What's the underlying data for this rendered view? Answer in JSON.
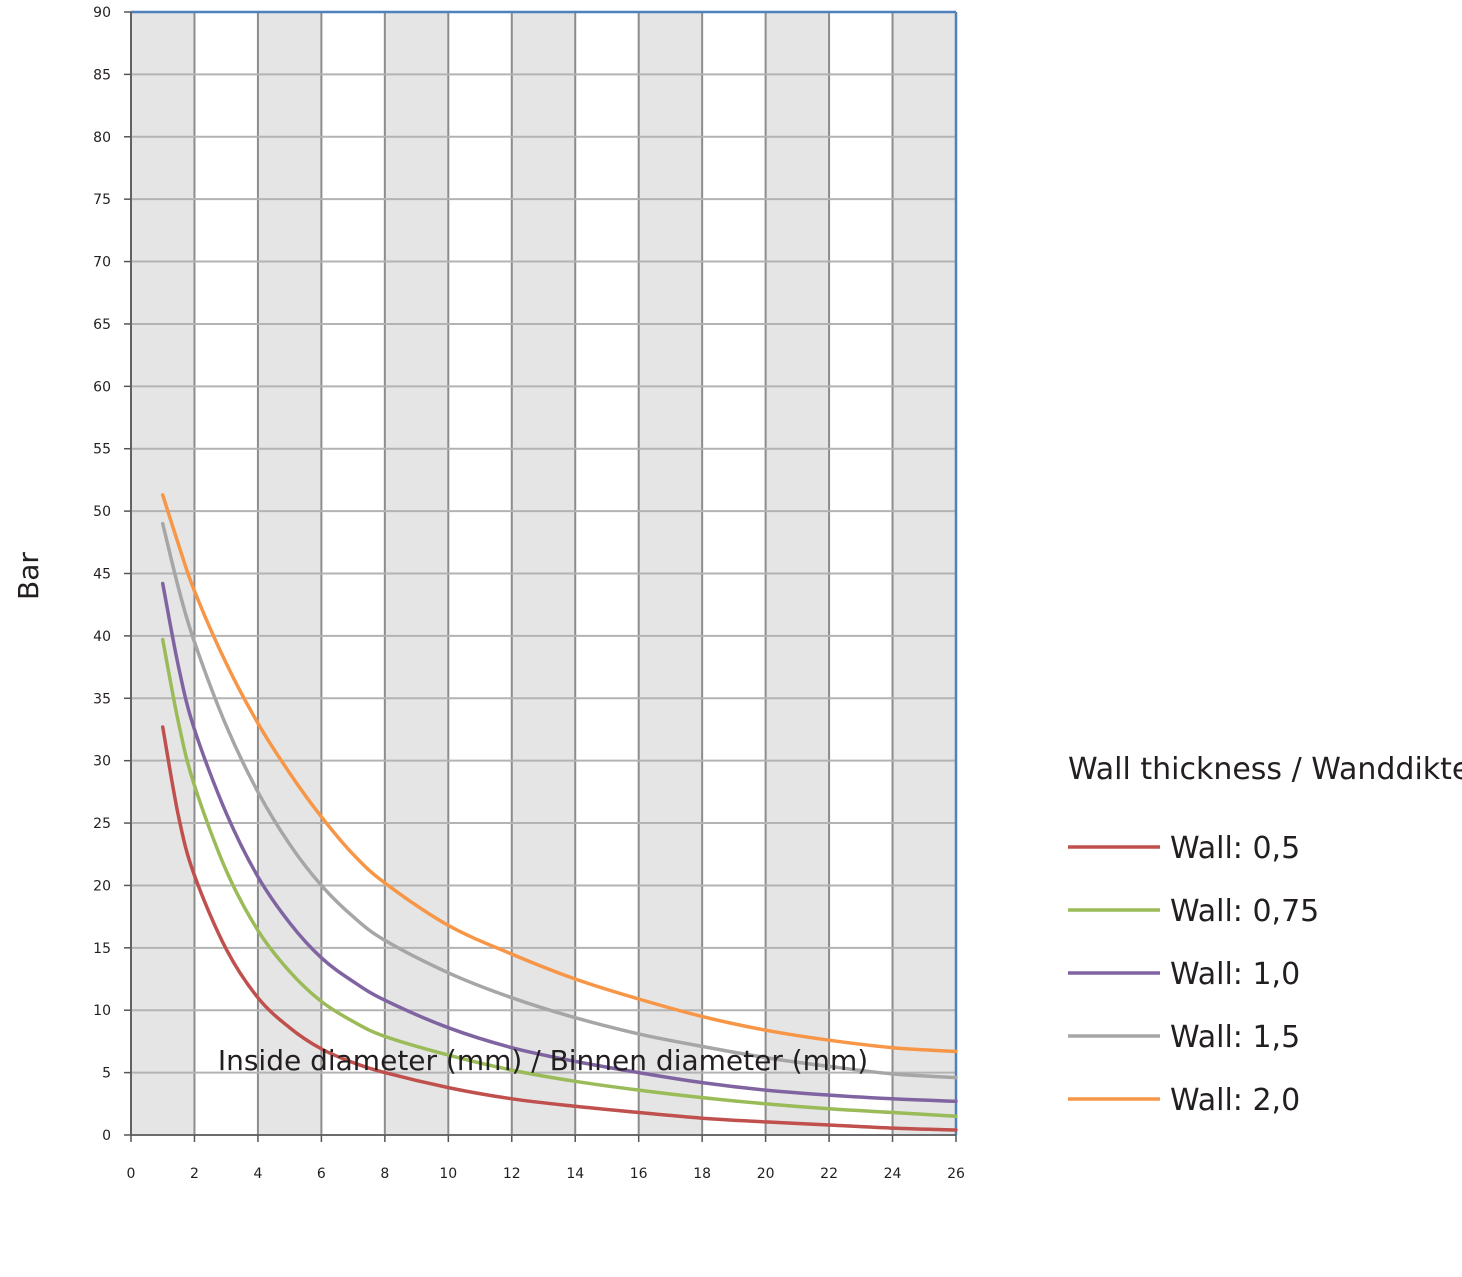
{
  "chart_data": {
    "type": "line",
    "xlabel": "Inside diameter (mm) / Binnen diameter (mm)",
    "ylabel": "Bar",
    "xlim": [
      0,
      26
    ],
    "ylim": [
      0,
      90
    ],
    "x_ticks": [
      0,
      2,
      4,
      6,
      8,
      10,
      12,
      14,
      16,
      18,
      20,
      22,
      24,
      26
    ],
    "y_ticks": [
      0,
      5,
      10,
      15,
      20,
      25,
      30,
      35,
      40,
      45,
      50,
      55,
      60,
      65,
      70,
      75,
      80,
      85,
      90
    ],
    "grid": true,
    "alternating_column_shading": true,
    "colors": {
      "shade": "#e4e5e4",
      "grid": "#8c8c8c",
      "frame": "#4f81bd"
    },
    "legend": {
      "title": "Wall thickness / Wanddikte",
      "position": "right"
    },
    "series": [
      {
        "name": "Wall: 0,5",
        "color": "#c0504d",
        "points": [
          [
            1,
            32.7
          ],
          [
            1.5,
            25.5
          ],
          [
            2,
            20.8
          ],
          [
            3,
            14.9
          ],
          [
            4,
            11.0
          ],
          [
            5,
            8.6
          ],
          [
            6,
            6.9
          ],
          [
            7,
            5.8
          ],
          [
            8,
            5.0
          ],
          [
            10,
            3.8
          ],
          [
            12,
            2.9
          ],
          [
            14,
            2.3
          ],
          [
            16,
            1.8
          ],
          [
            18,
            1.35
          ],
          [
            20,
            1.05
          ],
          [
            22,
            0.8
          ],
          [
            24,
            0.55
          ],
          [
            26,
            0.4
          ]
        ]
      },
      {
        "name": "Wall: 0,75",
        "color": "#9bbb59",
        "points": [
          [
            1,
            39.7
          ],
          [
            1.5,
            33.0
          ],
          [
            2,
            28.0
          ],
          [
            3,
            21.2
          ],
          [
            4,
            16.4
          ],
          [
            5,
            13.1
          ],
          [
            6,
            10.7
          ],
          [
            7,
            9.1
          ],
          [
            8,
            7.9
          ],
          [
            10,
            6.4
          ],
          [
            12,
            5.2
          ],
          [
            14,
            4.3
          ],
          [
            16,
            3.6
          ],
          [
            18,
            3.0
          ],
          [
            20,
            2.5
          ],
          [
            22,
            2.1
          ],
          [
            24,
            1.8
          ],
          [
            26,
            1.5
          ]
        ]
      },
      {
        "name": "Wall: 1,0",
        "color": "#8064a2",
        "points": [
          [
            1,
            44.2
          ],
          [
            1.5,
            37.5
          ],
          [
            2,
            32.5
          ],
          [
            3,
            25.8
          ],
          [
            4,
            20.7
          ],
          [
            5,
            17.0
          ],
          [
            6,
            14.2
          ],
          [
            7,
            12.3
          ],
          [
            8,
            10.8
          ],
          [
            10,
            8.6
          ],
          [
            12,
            7.0
          ],
          [
            14,
            5.9
          ],
          [
            16,
            5.0
          ],
          [
            18,
            4.2
          ],
          [
            20,
            3.6
          ],
          [
            22,
            3.2
          ],
          [
            24,
            2.9
          ],
          [
            26,
            2.7
          ]
        ]
      },
      {
        "name": "Wall: 1,5",
        "color": "#a6a6a6",
        "points": [
          [
            1,
            49.0
          ],
          [
            1.5,
            43.8
          ],
          [
            2,
            39.5
          ],
          [
            3,
            32.8
          ],
          [
            4,
            27.5
          ],
          [
            5,
            23.3
          ],
          [
            6,
            20.0
          ],
          [
            7,
            17.5
          ],
          [
            8,
            15.6
          ],
          [
            10,
            13.0
          ],
          [
            12,
            11.0
          ],
          [
            14,
            9.4
          ],
          [
            16,
            8.1
          ],
          [
            18,
            7.1
          ],
          [
            20,
            6.2
          ],
          [
            22,
            5.5
          ],
          [
            24,
            4.9
          ],
          [
            26,
            4.6
          ]
        ]
      },
      {
        "name": "Wall: 2,0",
        "color": "#f79646",
        "points": [
          [
            1,
            51.3
          ],
          [
            1.5,
            47.3
          ],
          [
            2,
            43.6
          ],
          [
            3,
            37.8
          ],
          [
            4,
            33.0
          ],
          [
            5,
            29.0
          ],
          [
            6,
            25.5
          ],
          [
            7,
            22.5
          ],
          [
            8,
            20.2
          ],
          [
            10,
            16.8
          ],
          [
            12,
            14.5
          ],
          [
            14,
            12.5
          ],
          [
            16,
            10.9
          ],
          [
            18,
            9.5
          ],
          [
            20,
            8.4
          ],
          [
            22,
            7.6
          ],
          [
            24,
            7.0
          ],
          [
            26,
            6.7
          ]
        ]
      }
    ]
  }
}
